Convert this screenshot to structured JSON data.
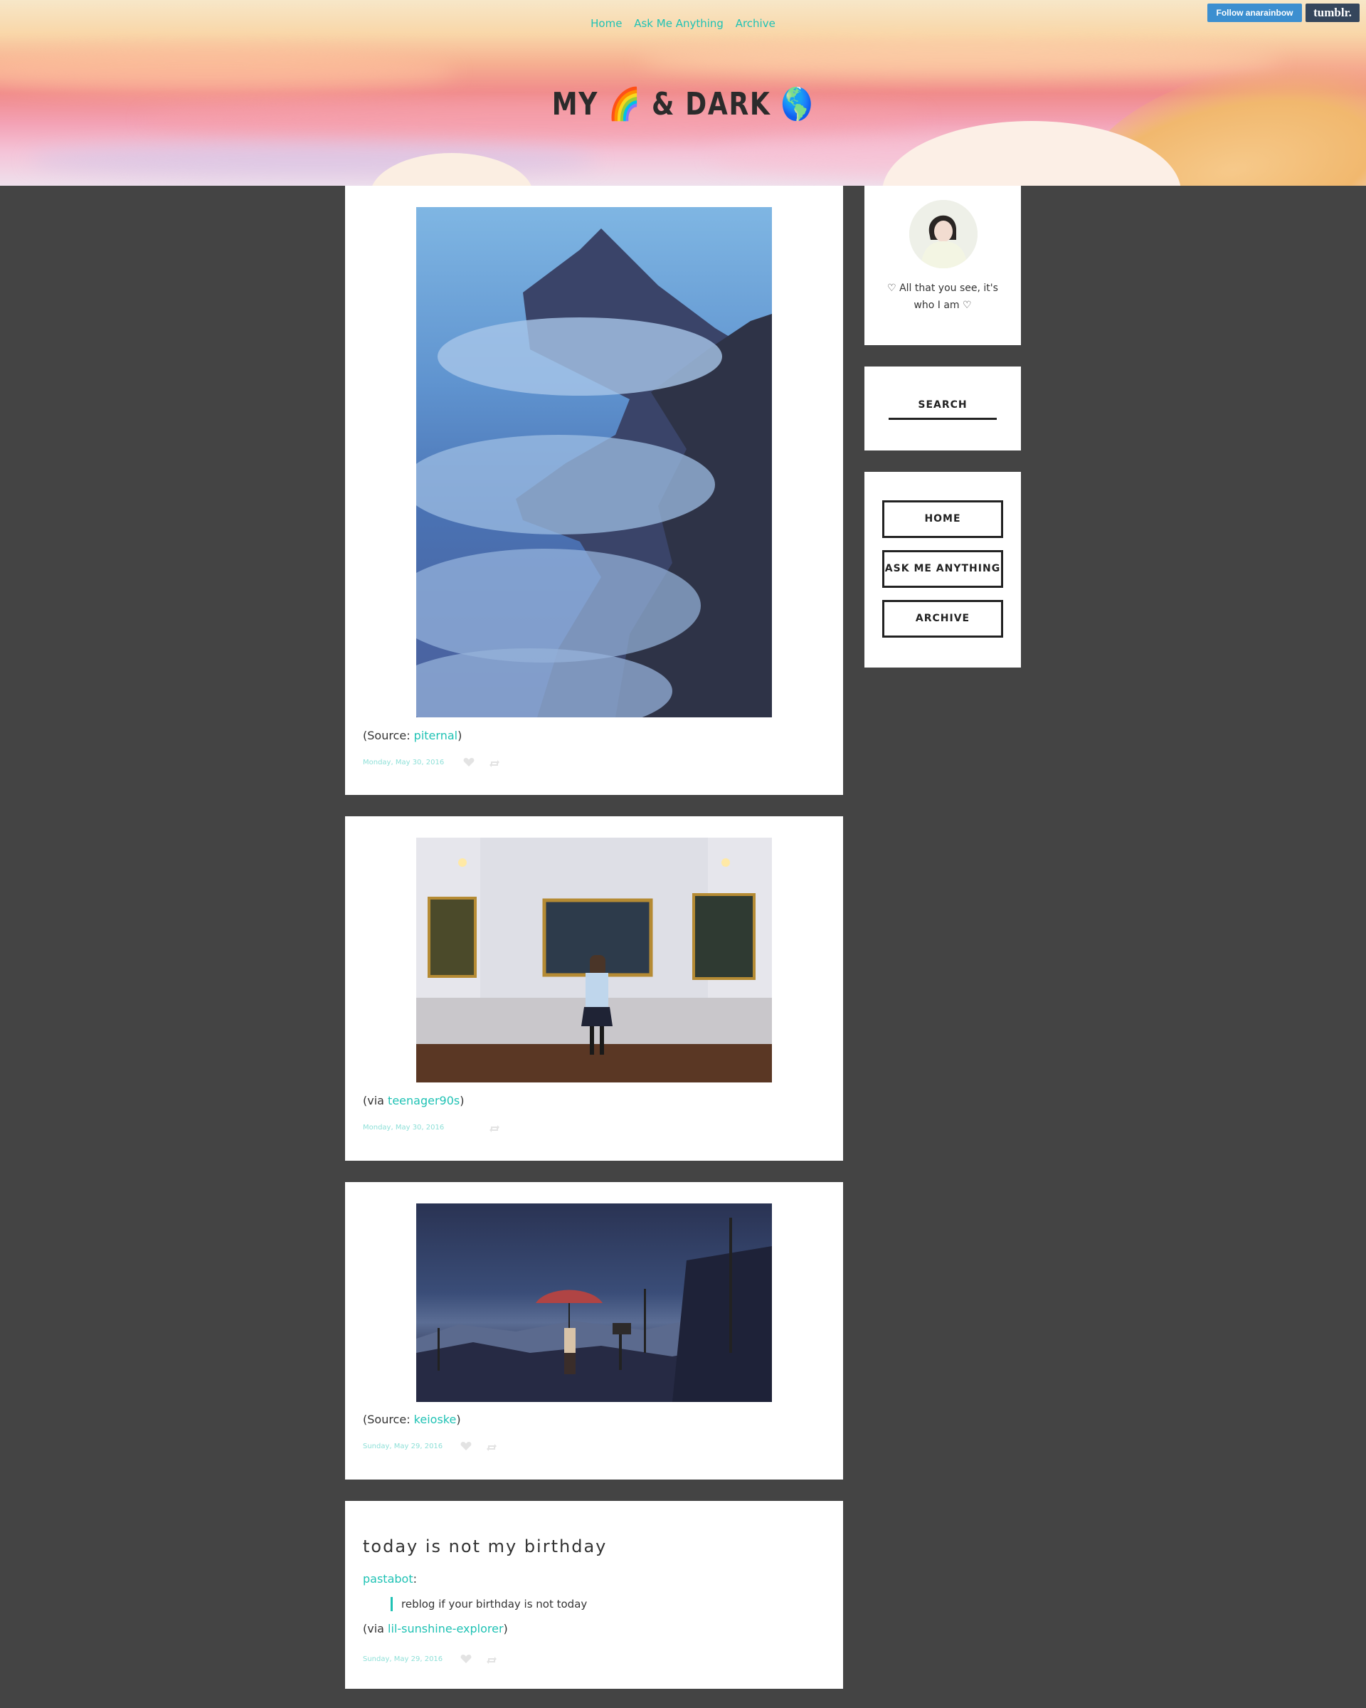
{
  "header": {
    "nav": [
      "Home",
      "Ask Me Anything",
      "Archive"
    ],
    "title": "MY 🌈 & DARK 🌎",
    "follow_label": "Follow anarainbow",
    "tumblr_label": "tumblr."
  },
  "posts": [
    {
      "caption_prefix": "(Source: ",
      "caption_link": "piternal",
      "caption_suffix": ")",
      "date": "Monday, May 30, 2016"
    },
    {
      "caption_prefix": "(via ",
      "caption_link": "teenager90s",
      "caption_suffix": ")",
      "date": "Monday, May 30, 2016"
    },
    {
      "caption_prefix": "(Source: ",
      "caption_link": "keioske",
      "caption_suffix": ")",
      "date": "Sunday, May 29, 2016"
    },
    {
      "title": "today is not my birthday",
      "author": "pastabot",
      "author_suffix": ":",
      "quote": "reblog if your birthday is not today",
      "via_prefix": "(via ",
      "via_link": "lil-sunshine-explorer",
      "via_suffix": ")",
      "date": "Sunday, May 29, 2016"
    }
  ],
  "sidebar": {
    "description": "♡ All that you see, it's who I am ♡",
    "search_label": "SEARCH",
    "nav": [
      "HOME",
      "ASK ME ANYTHING",
      "ARCHIVE"
    ]
  },
  "colors": {
    "accent": "#1fc2b4",
    "background": "#444444",
    "follow_button": "#3c8fd0",
    "tumblr_button": "#35465c"
  }
}
